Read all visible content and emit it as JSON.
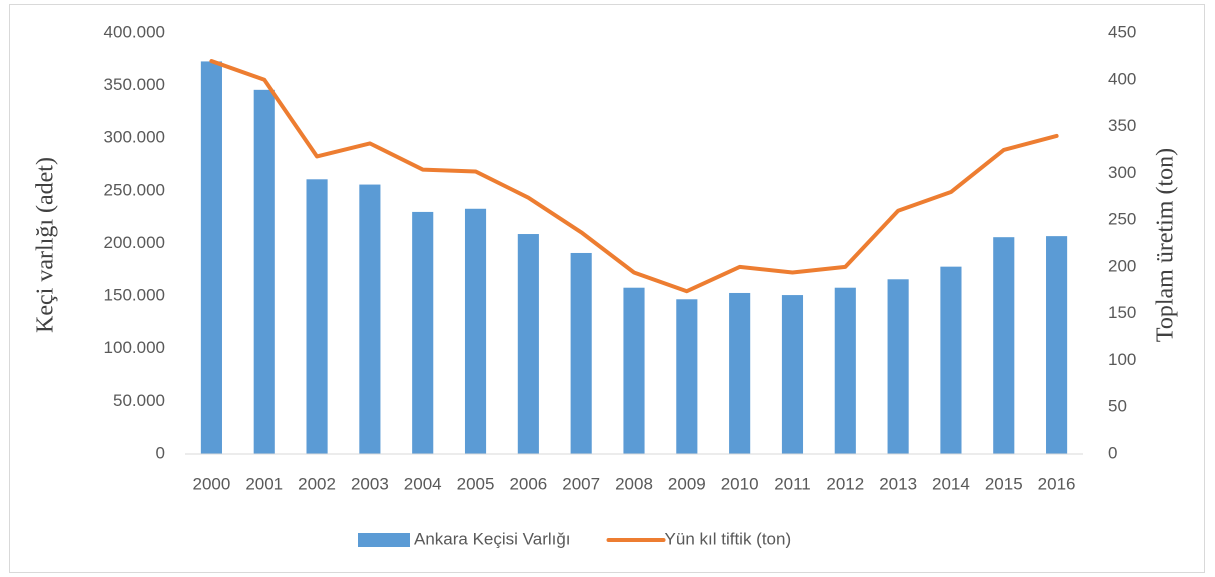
{
  "chart_data": {
    "type": "bar+line",
    "categories": [
      "2000",
      "2001",
      "2002",
      "2003",
      "2004",
      "2005",
      "2006",
      "2007",
      "2008",
      "2009",
      "2010",
      "2011",
      "2012",
      "2013",
      "2014",
      "2015",
      "2016"
    ],
    "series": [
      {
        "name": "Ankara Keçisi Varlığı",
        "type": "bar",
        "color": "#5b9bd5",
        "axis": "y",
        "values": [
          373000,
          346000,
          261000,
          256000,
          230000,
          233000,
          209000,
          191000,
          158000,
          147000,
          153000,
          151000,
          158000,
          166000,
          178000,
          206000,
          207000
        ]
      },
      {
        "name": "Yün kıl tiftik (ton)",
        "type": "line",
        "color": "#ed7d31",
        "axis": "y2",
        "values": [
          420,
          400,
          318,
          332,
          304,
          302,
          274,
          237,
          194,
          174,
          200,
          194,
          200,
          260,
          280,
          325,
          340
        ]
      }
    ],
    "ylabel": "Keçi varlığı (adet)",
    "y2label": "Toplam üretim (ton)",
    "ylim": [
      0,
      400000
    ],
    "yticks": [
      0,
      {
        "value": 50000,
        "label": "50.000"
      },
      {
        "value": 100000,
        "label": "100.000"
      },
      {
        "value": 150000,
        "label": "150.000"
      },
      {
        "value": 200000,
        "label": "200.000"
      },
      {
        "value": 250000,
        "label": "250.000"
      },
      {
        "value": 300000,
        "label": "300.000"
      },
      {
        "value": 350000,
        "label": "350.000"
      },
      {
        "value": 400000,
        "label": "400.000"
      }
    ],
    "y2lim": [
      0,
      450
    ],
    "y2ticks": [
      0,
      50,
      100,
      150,
      200,
      250,
      300,
      350,
      400,
      450
    ],
    "grid": false,
    "legend": "bottom"
  }
}
